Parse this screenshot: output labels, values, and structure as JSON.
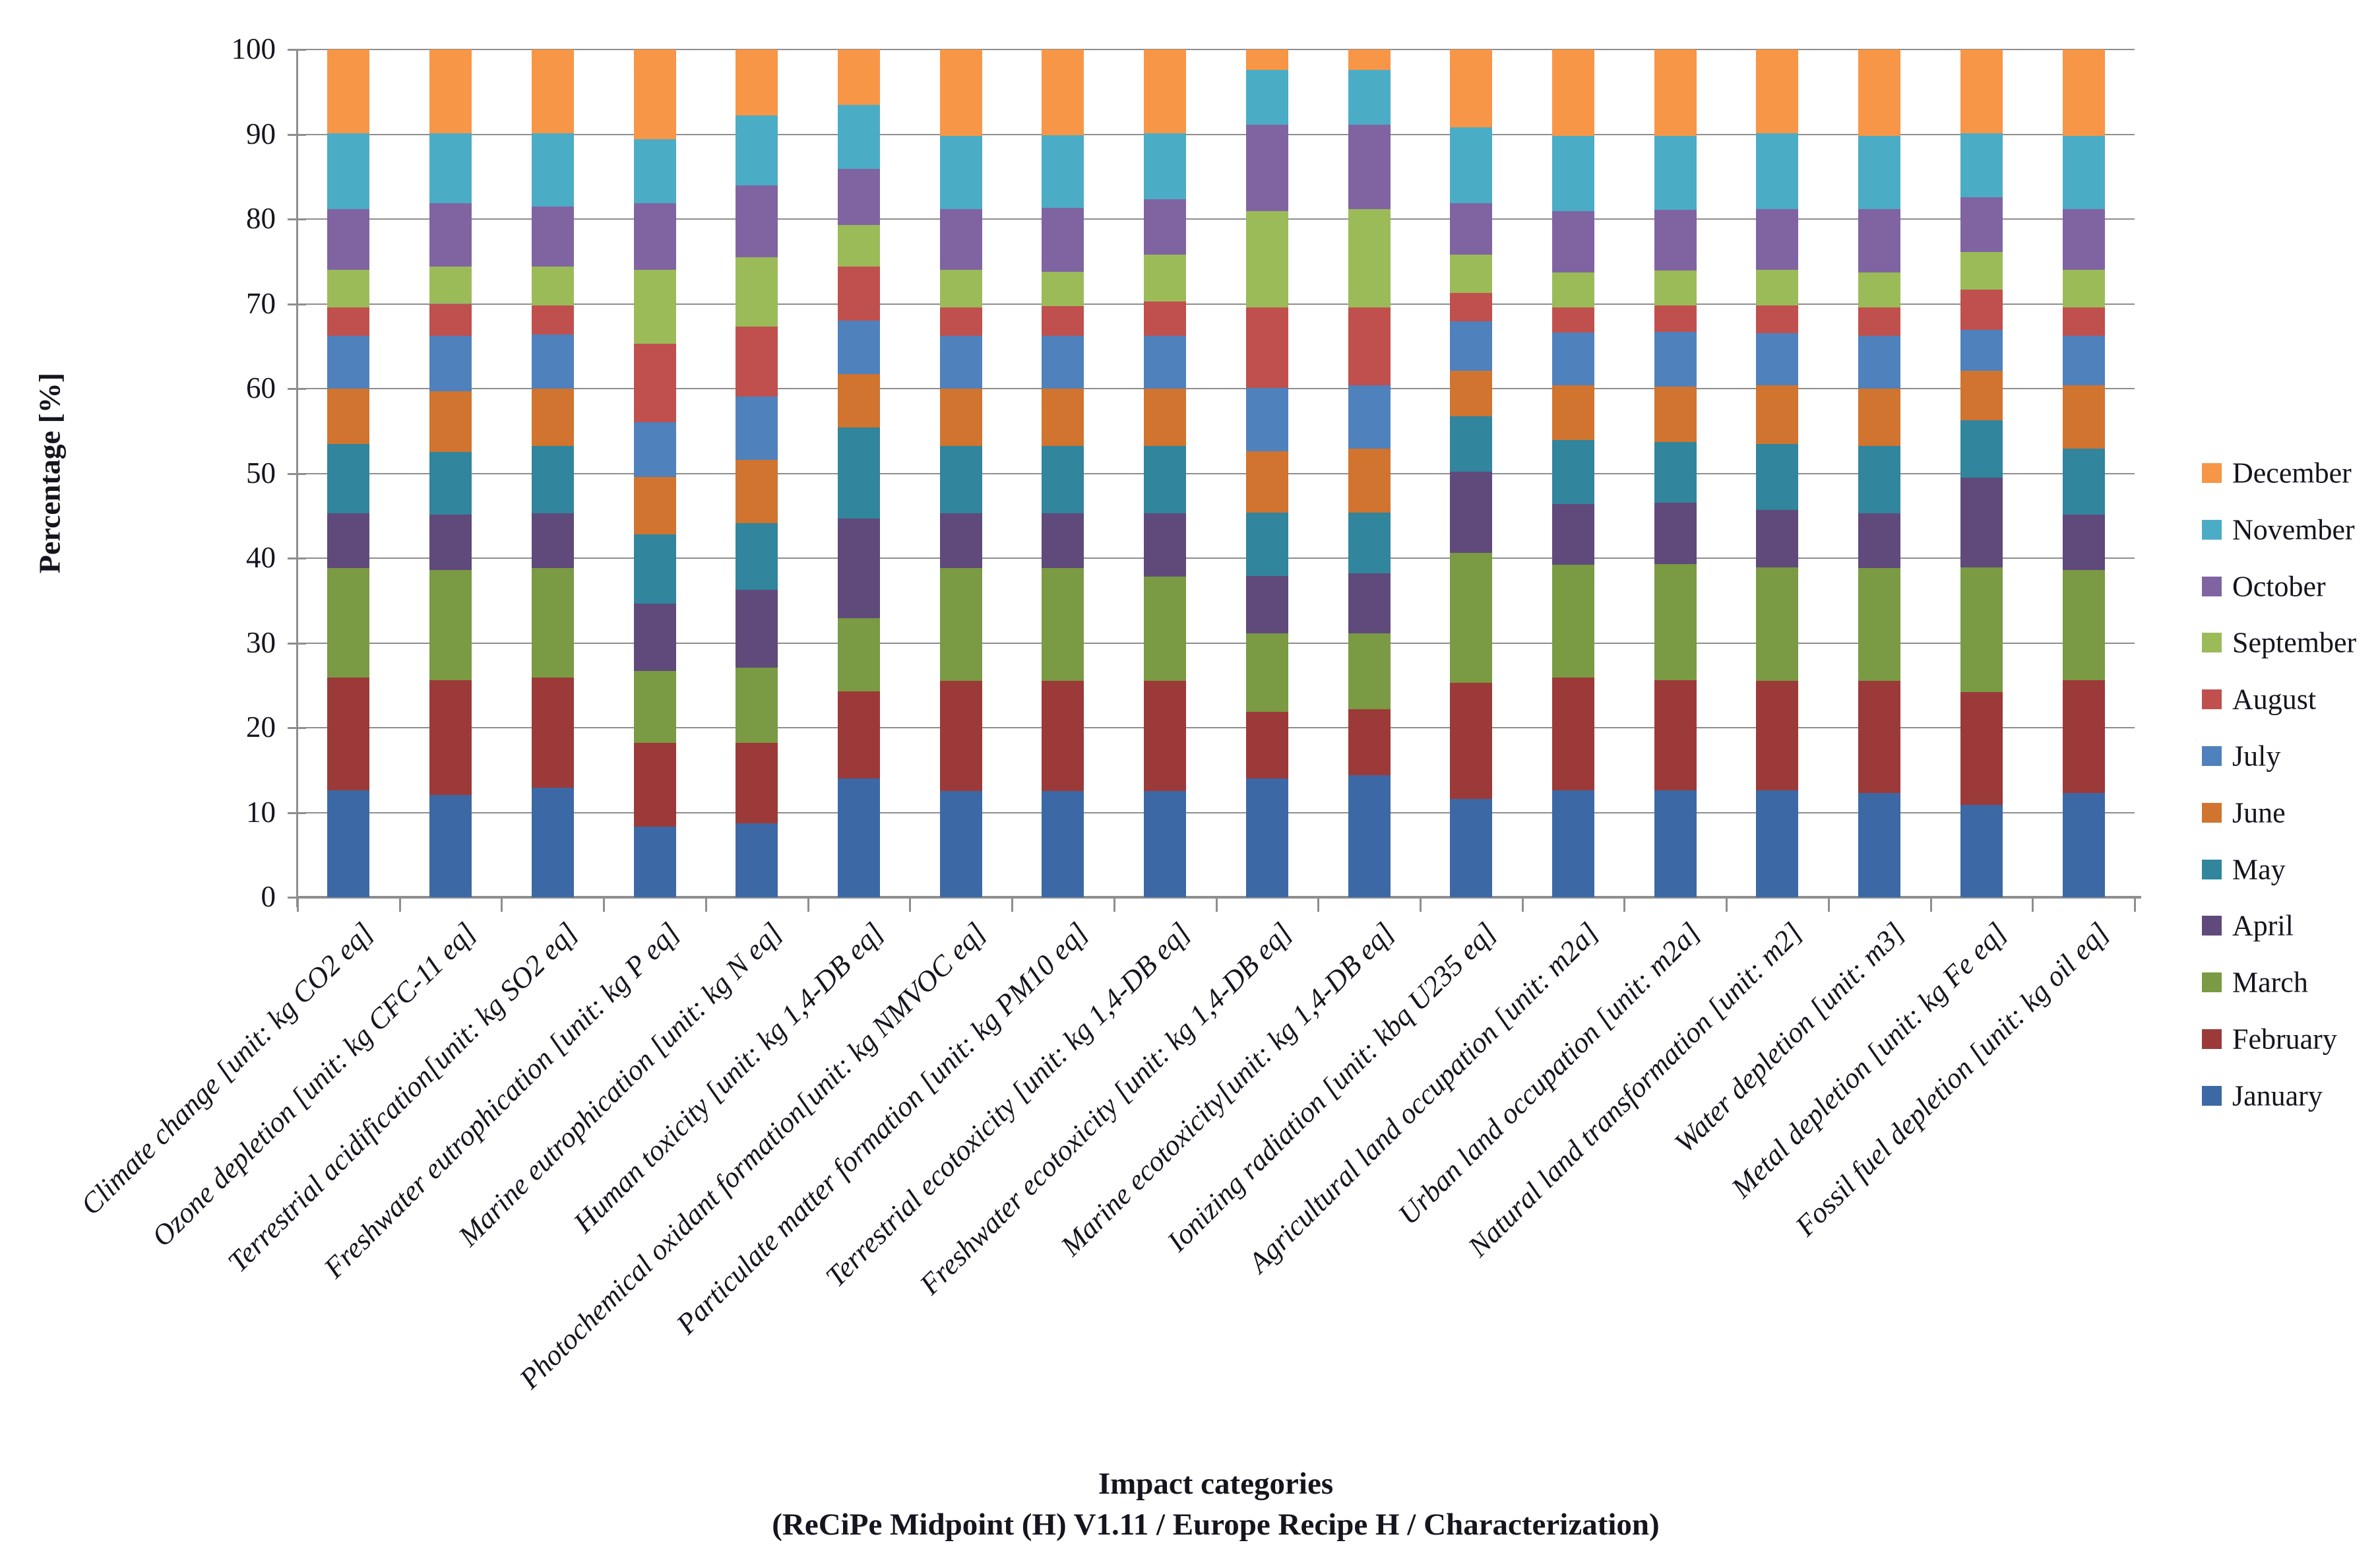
{
  "chart_data": {
    "type": "bar",
    "subtype": "stacked-100-percent",
    "ylabel": "Percentage [%]",
    "xlabel_line1": "Impact categories",
    "xlabel_line2": "(ReCiPe Midpoint (H) V1.11 / Europe Recipe H / Characterization)",
    "ylim": [
      0,
      100
    ],
    "yticks": [
      0,
      10,
      20,
      30,
      40,
      50,
      60,
      70,
      80,
      90,
      100
    ],
    "grid": true,
    "legend_position": "right",
    "legend_top_to_bottom": [
      "December",
      "November",
      "October",
      "September",
      "August",
      "July",
      "June",
      "May",
      "April",
      "March",
      "February",
      "January"
    ],
    "categories": [
      "Climate change [unit: kg CO2 eq]",
      "Ozone depletion [unit: kg CFC-11 eq]",
      "Terrestrial acidification[unit: kg SO2 eq]",
      "Freshwater eutrophication [unit: kg P eq]",
      "Marine eutrophication [unit: kg N eq]",
      "Human toxicity [unit: kg 1,4-DB eq]",
      "Photochemical oxidant formation[unit: kg NMVOC eq]",
      "Particulate matter formation [unit: kg PM10 eq]",
      "Terrestrial ecotoxicity [unit: kg 1,4-DB eq]",
      "Freshwater ecotoxicity [unit: kg 1,4-DB eq]",
      "Marine ecotoxicity[unit: kg 1,4-DB eq]",
      "Ionizing radiation [unit: kbq U235 eq]",
      "Agricultural land occupation [unit: m2a]",
      "Urban land occupation [unit: m2a]",
      "Natural land transformation [unit: m2]",
      "Water depletion [unit: m3]",
      "Metal depletion [unit: kg Fe eq]",
      "Fossil fuel depletion [unit: kg oil eq]"
    ],
    "series": [
      {
        "name": "January",
        "color": "#3C69A5",
        "values": [
          12.6,
          12.1,
          12.9,
          8.3,
          8.7,
          14.0,
          12.5,
          12.5,
          12.5,
          14.0,
          14.4,
          11.6,
          12.6,
          12.6,
          12.6,
          12.3,
          10.9,
          12.3
        ]
      },
      {
        "name": "February",
        "color": "#9C3A39",
        "values": [
          13.3,
          13.5,
          13.0,
          9.9,
          9.5,
          10.3,
          13.0,
          13.0,
          13.0,
          7.9,
          7.8,
          13.7,
          13.3,
          13.0,
          12.9,
          13.2,
          13.3,
          13.3
        ]
      },
      {
        "name": "March",
        "color": "#7A9A43",
        "values": [
          12.9,
          13.0,
          12.9,
          8.5,
          8.9,
          8.6,
          13.3,
          13.3,
          12.3,
          9.2,
          8.9,
          15.3,
          13.3,
          13.7,
          13.4,
          13.3,
          14.7,
          13.0
        ]
      },
      {
        "name": "April",
        "color": "#5F4A7B",
        "values": [
          6.5,
          6.5,
          6.5,
          7.9,
          9.2,
          11.8,
          6.5,
          6.5,
          7.5,
          6.8,
          7.1,
          9.6,
          7.2,
          7.2,
          6.8,
          6.5,
          10.6,
          6.5
        ]
      },
      {
        "name": "May",
        "color": "#31859C",
        "values": [
          8.2,
          7.4,
          7.9,
          8.2,
          7.8,
          10.7,
          7.9,
          7.9,
          7.9,
          7.5,
          7.2,
          6.5,
          7.5,
          7.2,
          7.8,
          7.9,
          6.8,
          7.8
        ]
      },
      {
        "name": "June",
        "color": "#D0742F",
        "values": [
          6.5,
          7.2,
          6.8,
          6.8,
          7.5,
          6.3,
          6.8,
          6.8,
          6.8,
          7.2,
          7.5,
          5.4,
          6.5,
          6.5,
          6.9,
          6.8,
          5.8,
          7.5
        ]
      },
      {
        "name": "July",
        "color": "#4F81BD",
        "values": [
          6.2,
          6.5,
          6.4,
          6.4,
          7.5,
          6.3,
          6.2,
          6.2,
          6.2,
          7.5,
          7.5,
          5.8,
          6.2,
          6.5,
          6.1,
          6.2,
          4.8,
          5.8
        ]
      },
      {
        "name": "August",
        "color": "#C0504D",
        "values": [
          3.4,
          3.8,
          3.4,
          9.3,
          8.2,
          6.4,
          3.4,
          3.5,
          4.1,
          9.5,
          9.2,
          3.4,
          3.0,
          3.1,
          3.3,
          3.4,
          4.8,
          3.4
        ]
      },
      {
        "name": "September",
        "color": "#9BBB59",
        "values": [
          4.4,
          4.4,
          4.6,
          8.7,
          8.2,
          4.9,
          4.4,
          4.1,
          5.5,
          11.3,
          11.6,
          4.5,
          4.1,
          4.1,
          4.2,
          4.1,
          4.4,
          4.4
        ]
      },
      {
        "name": "October",
        "color": "#8064A2",
        "values": [
          7.2,
          7.5,
          7.1,
          7.9,
          8.5,
          6.6,
          7.2,
          7.5,
          6.5,
          10.2,
          9.9,
          6.1,
          7.2,
          7.2,
          7.2,
          7.5,
          6.5,
          7.2
        ]
      },
      {
        "name": "November",
        "color": "#4BACC6",
        "values": [
          8.9,
          8.2,
          8.6,
          7.5,
          8.2,
          7.6,
          8.6,
          8.6,
          7.8,
          6.5,
          6.5,
          8.9,
          8.9,
          8.7,
          8.9,
          8.6,
          7.5,
          8.6
        ]
      },
      {
        "name": "December",
        "color": "#F79646",
        "values": [
          9.9,
          9.9,
          9.9,
          10.6,
          7.8,
          6.5,
          10.2,
          10.1,
          9.9,
          2.4,
          2.4,
          9.2,
          10.2,
          10.2,
          9.9,
          10.2,
          9.9,
          10.2
        ]
      }
    ]
  }
}
